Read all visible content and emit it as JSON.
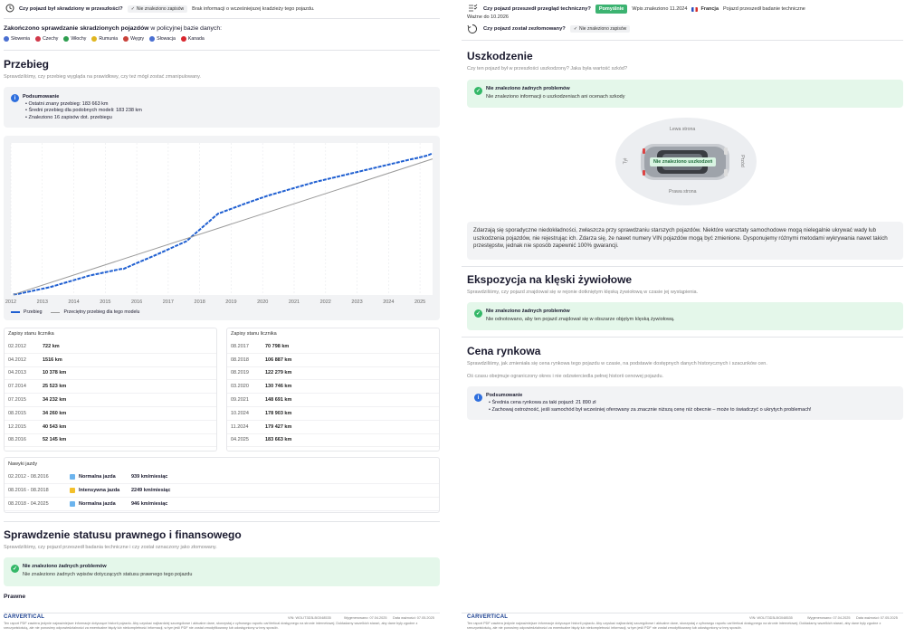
{
  "left": {
    "stolen_check": {
      "question": "Czy pojazd był skradziony w przeszłości?",
      "chip": "Nie znaleziono zapisów",
      "info": "Brak informacji o wcześniejszej kradzieży tego pojazdu."
    },
    "police_db": {
      "title_bold": "Zakończono sprawdzanie skradzionych pojazdów",
      "title_rest": " w policyjnej bazie danych:",
      "countries": [
        {
          "name": "Słowenia",
          "color": "#4a6fd1"
        },
        {
          "name": "Czechy",
          "color": "#d1394a"
        },
        {
          "name": "Włochy",
          "color": "#2e9e4f"
        },
        {
          "name": "Rumunia",
          "color": "#e0b620"
        },
        {
          "name": "Węgry",
          "color": "#c9423a"
        },
        {
          "name": "Słowacja",
          "color": "#4a6fd1"
        },
        {
          "name": "Kanada",
          "color": "#d9262e"
        }
      ]
    },
    "mileage": {
      "title": "Przebieg",
      "subtitle": "Sprawdziliśmy, czy przebieg wygląda na prawidłowy, czy też mógł zostać zmanipulowany.",
      "summary_title": "Podsumowanie",
      "summary_items": [
        "Ostatni znany przebieg: 183 663 km",
        "Średni przebieg dla podobnych modeli: 183 238 km",
        "Znaleziono 16 zapisów dot. przebiegu"
      ],
      "legend_mileage": "Przebieg",
      "legend_avg": "Przeciętny przebieg dla tego modelu",
      "records_title_1": "Zapisy stanu licznika",
      "records_title_2": "Zapisy stanu licznika",
      "records_1": [
        {
          "date": "02.2012",
          "km": "722 km"
        },
        {
          "date": "04.2012",
          "km": "1516 km"
        },
        {
          "date": "04.2013",
          "km": "10 378 km"
        },
        {
          "date": "07.2014",
          "km": "25 523 km"
        },
        {
          "date": "07.2015",
          "km": "34 232 km"
        },
        {
          "date": "08.2015",
          "km": "34 260 km"
        },
        {
          "date": "12.2015",
          "km": "40 543 km"
        },
        {
          "date": "08.2016",
          "km": "52 145 km"
        }
      ],
      "records_2": [
        {
          "date": "08.2017",
          "km": "70 798 km"
        },
        {
          "date": "08.2018",
          "km": "106 887 km"
        },
        {
          "date": "08.2019",
          "km": "122 279 km"
        },
        {
          "date": "03.2020",
          "km": "130 746 km"
        },
        {
          "date": "09.2021",
          "km": "148 691 km"
        },
        {
          "date": "10.2024",
          "km": "178 903 km"
        },
        {
          "date": "11.2024",
          "km": "179 427 km"
        },
        {
          "date": "04.2025",
          "km": "183 663 km"
        }
      ],
      "habits_title": "Nawyki jazdy",
      "habits": [
        {
          "range": "02.2012 - 08.2016",
          "color": "#6cb4ee",
          "label": "Normalna jazda",
          "rate": "939 km/miesiąc"
        },
        {
          "range": "08.2016 - 08.2018",
          "color": "#f3c02b",
          "label": "Intensywna jazda",
          "rate": "2249 km/miesiąc"
        },
        {
          "range": "08.2018 - 04.2025",
          "color": "#6cb4ee",
          "label": "Normalna jazda",
          "rate": "946 km/miesiąc"
        }
      ]
    },
    "legal": {
      "title": "Sprawdzenie statusu prawnego i finansowego",
      "subtitle": "Sprawdziliśmy, czy pojazd przeszedł badania techniczne i czy został oznaczony jako złomowany.",
      "ok_title": "Nie znaleziono żadnych problemów",
      "ok_text": "Nie znaleziono żadnych wpisów dotyczących statusu prawnego tego pojazdu",
      "next_heading": "Prawne"
    },
    "footer": {
      "logo": "CARVERTICAL",
      "vin": "VIN: WOLIT3D3LBG048535",
      "generated": "Wygenerowano: 07.04.2025",
      "valid": "Data ważności: 07.05.2025",
      "disclaimer": "Ten raport PDF zawiera jedynie najważniejsze informacje dotyczące historii pojazdu. Aby uzyskać najbardziej szczegółowe i aktualne dane, skorzystaj z cyfrowego raportu carVertical dostępnego na stronie internetowej. Dokładamy wszelkich starań, aby dane były zgodne z rzeczywistością, ale nie ponosimy odpowiedzialności za ewentualne błędy lub niekompletność informacji, w tym jeśli PDF nie został zmodyfikowany lub udostępniony w inny sposób."
    }
  },
  "right": {
    "inspection": {
      "question": "Czy pojazd przeszedł przegląd techniczny?",
      "badge": "Pomyślnie",
      "found": "Wpis znaleziono 11.2024",
      "country": "Francja",
      "desc": "Pojazd przeszedł badanie techniczne",
      "valid": "Ważne do 10.2026"
    },
    "scrapped": {
      "question": "Czy pojazd został zezłomowany?",
      "chip": "Nie znaleziono zapisów"
    },
    "damage": {
      "title": "Uszkodzenie",
      "subtitle": "Czy ten pojazd był w przeszłości uszkodzony? Jaka była wartość szkód?",
      "ok_title": "Nie znaleziono żadnych problemów",
      "ok_text": "Nie znaleziono informacji o uszkodzeniach ani ocenach szkody",
      "car_left": "Lewa strona",
      "car_right": "Prawa strona",
      "car_back": "Tył",
      "car_front": "Przód",
      "car_badge": "Nie znaleziono uszkodzeń",
      "note": "Zdarzają się sporadyczne niedokładności, zwłaszcza przy sprawdzaniu starszych pojazdów. Niektóre warsztaty samochodowe mogą nielegalnie ukrywać wady lub uszkodzenia pojazdów, nie rejestrując ich. Zdarza się, że nawet numery VIN pojazdów mogą być zmienione. Dysponujemy różnymi metodami wykrywania nawet takich przestępstw, jednak nie sposób zapewnić 100% gwarancji."
    },
    "disaster": {
      "title": "Ekspozycja na klęski żywiołowe",
      "subtitle": "Sprawdziliśmy, czy pojazd znajdował się w rejonie dotkniętym klęską żywiołową w czasie jej wystąpienia.",
      "ok_title": "Nie znaleziono żadnych problemów",
      "ok_text": "Nie odnotowano, aby ten pojazd znajdował się w obszarze objętym klęską żywiołową."
    },
    "market": {
      "title": "Cena rynkowa",
      "subtitle": "Sprawdziliśmy, jak zmieniała się cena rynkowa tego pojazdu w czasie, na podstawie dostępnych danych historycznych i szacunków cen.",
      "note": "Oś czasu obejmuje ograniczony okres i nie odzwierciedla pełnej historii cenowej pojazdu.",
      "summary_title": "Podsumowanie",
      "summary_items": [
        "Średnia cena rynkowa za taki pojazd: 21 890 zł",
        "Zachowaj ostrożność, jeśli samochód był wcześniej oferowany za znacznie niższą cenę niż obecnie – może to świadczyć o ukrytych problemach!"
      ]
    },
    "footer": {
      "logo": "CARVERTICAL",
      "vin": "VIN: WOLIT3D3LBG048535",
      "generated": "Wygenerowano: 07.04.2025",
      "valid": "Data ważności: 07.05.2025",
      "disclaimer": "Ten raport PDF zawiera jedynie najważniejsze informacje dotyczące historii pojazdu. Aby uzyskać najbardziej szczegółowe i aktualne dane, skorzystaj z cyfrowego raportu carVertical dostępnego na stronie internetowej. Dokładamy wszelkich starań, aby dane były zgodne z rzeczywistością, ale nie ponosimy odpowiedzialności za ewentualne błędy lub niekompletność informacji, w tym jeśli PDF nie został zmodyfikowany lub udostępniony w inny sposób."
    }
  },
  "chart_data": {
    "type": "line",
    "x_ticks": [
      "2012",
      "2013",
      "2014",
      "2015",
      "2016",
      "2017",
      "2018",
      "2019",
      "2020",
      "2021",
      "2022",
      "2023",
      "2024",
      "2025"
    ],
    "xlim": [
      2012,
      2025.4
    ],
    "ylim": [
      0,
      200000
    ],
    "series": [
      {
        "name": "Przebieg",
        "color": "#1f5fd1",
        "x": [
          2012.08,
          2012.25,
          2013.25,
          2014.5,
          2015.5,
          2015.58,
          2015.92,
          2016.58,
          2017.58,
          2018.58,
          2019.58,
          2020.17,
          2021.67,
          2024.75,
          2024.83,
          2025.25,
          2025.4
        ],
        "y": [
          722,
          1516,
          10378,
          25523,
          34232,
          34260,
          40543,
          52145,
          70798,
          106887,
          122279,
          130746,
          148691,
          178903,
          179427,
          183663,
          186500
        ]
      },
      {
        "name": "Przeciętny przebieg dla tego modelu",
        "color": "#9a9a9a",
        "x": [
          2012.08,
          2025.4
        ],
        "y": [
          500,
          179000
        ]
      }
    ]
  }
}
